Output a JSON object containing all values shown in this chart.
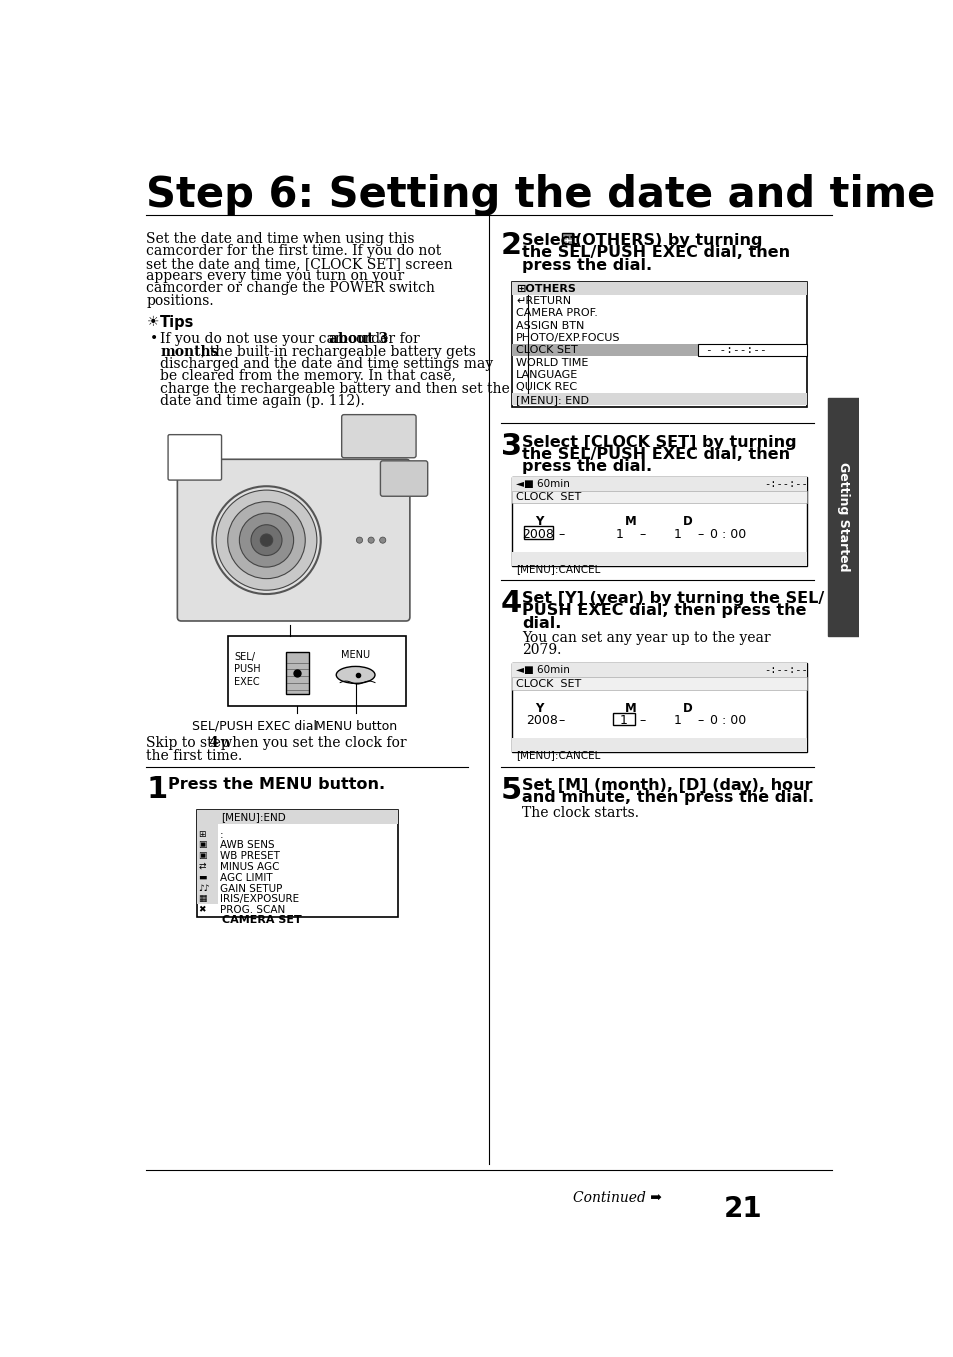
{
  "title": "Step 6: Setting the date and time",
  "bg_color": "#ffffff",
  "text_color": "#000000",
  "page_number": "21",
  "intro_text": "Set the date and time when using this\ncamcorder for the first time. If you do not\nset the date and time, [CLOCK SET] screen\nappears every time you turn on your\ncamcorder or change the POWER switch\npositions.",
  "tips_header": "Tips",
  "step1_text": "Press the MENU button.",
  "step2_text_1": "Select   ⊞  (OTHERS) by turning",
  "step2_text_2": "the SEL/PUSH EXEC dial, then",
  "step2_text_3": "press the dial.",
  "step3_text_1": "Select [CLOCK SET] by turning",
  "step3_text_2": "the SEL/PUSH EXEC dial, then",
  "step3_text_3": "press the dial.",
  "step4_text_1": "Set [Y] (year) by turning the SEL/",
  "step4_text_2": "PUSH EXEC dial, then press the",
  "step4_text_3": "dial.",
  "step4_sub1": "You can set any year up to the year",
  "step4_sub2": "2079.",
  "step5_text_1": "Set [M] (month), [D] (day), hour",
  "step5_text_2": "and minute, then press the dial.",
  "step5_sub": "The clock starts.",
  "skip_text1": "Skip to step ",
  "skip_bold": "4",
  "skip_text2": " when you set the clock for",
  "skip_text3": "the first time.",
  "others_menu_items": [
    "⊞OTHERS",
    "↵RETURN",
    "CAMERA PROF.",
    "ASSIGN BTN",
    "PHOTO/EXP.FOCUS",
    "CLOCK SET",
    "WORLD TIME",
    "LANGUAGE",
    "QUICK REC"
  ],
  "others_menu_footer": "[MENU]: END",
  "others_highlight": 5,
  "camera_menu_header": "CAMERA SET",
  "camera_menu_items": [
    "PROG. SCAN",
    "IRIS/EXPOSURE",
    "GAIN SETUP",
    "AGC LIMIT",
    "MINUS AGC",
    "WB PRESET",
    "AWB SENS",
    ":"
  ],
  "camera_menu_footer": "[MENU]:END",
  "clock_screen_footer": "[MENU]:CANCEL",
  "sidebar_color": "#3d3d3d",
  "sidebar_text": "Getting Started",
  "divider_color": "#000000",
  "step_num_size": 22,
  "step_text_size": 11.5,
  "body_text_size": 10,
  "small_text_size": 8.5,
  "menu_text_size": 8,
  "highlight_color": "#aaaaaa"
}
